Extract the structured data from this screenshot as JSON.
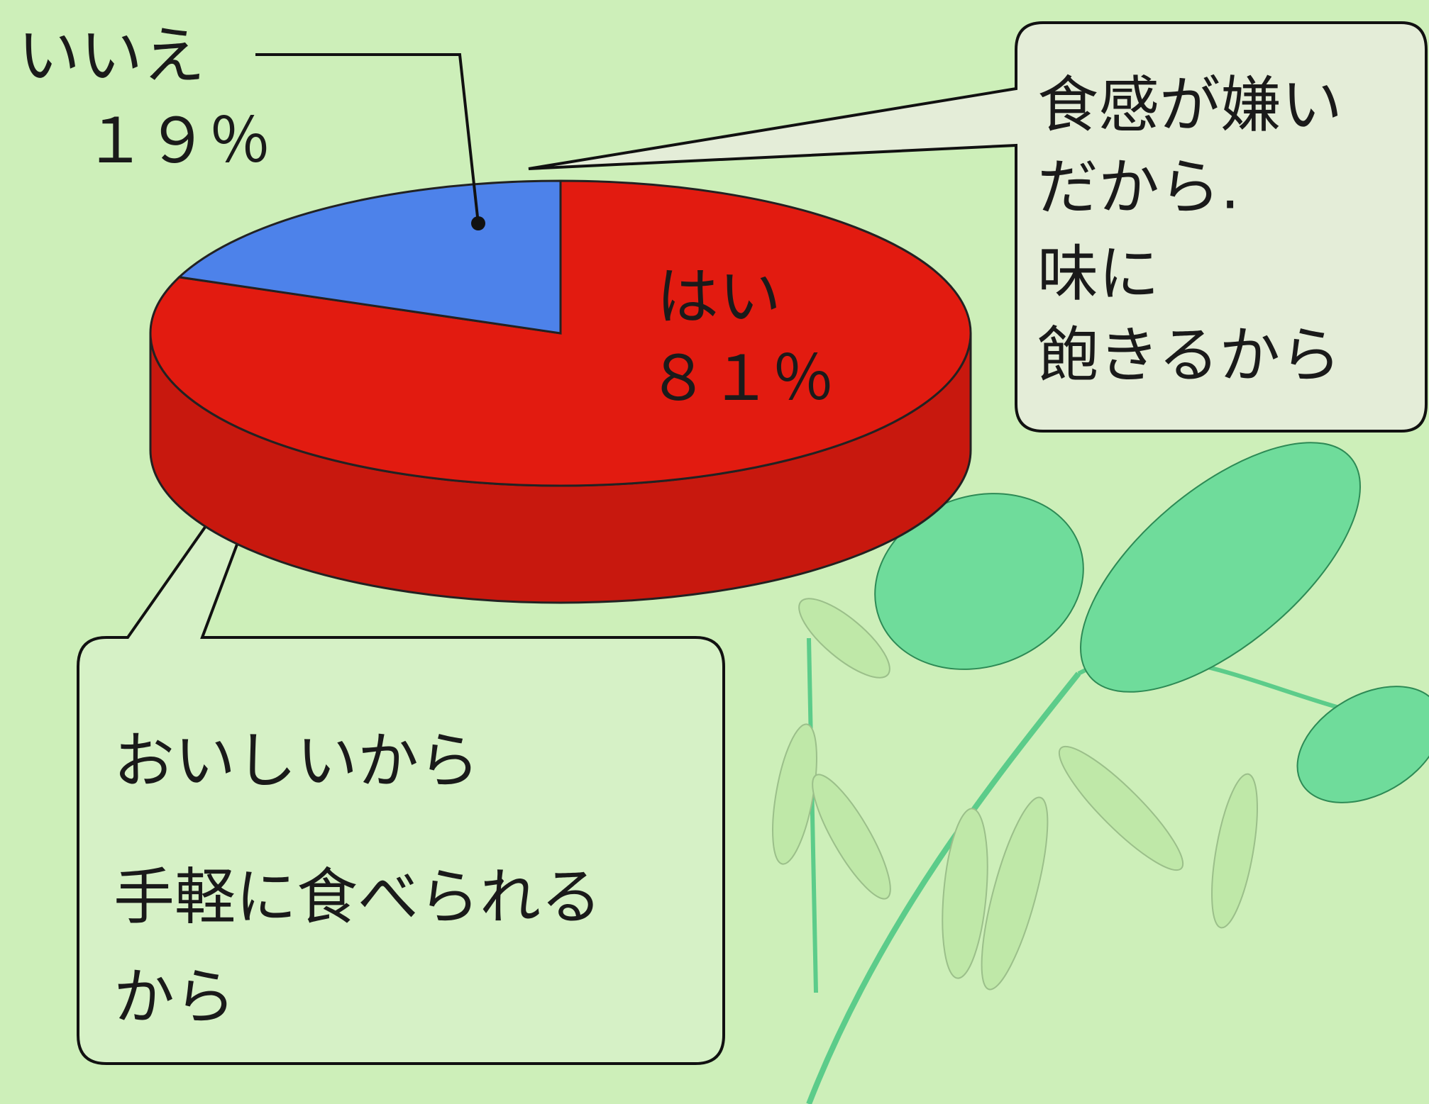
{
  "chart_data": {
    "type": "pie",
    "categories": [
      "はい",
      "いいえ"
    ],
    "values": [
      81,
      19
    ],
    "value_labels": [
      "８１％",
      "１９％"
    ],
    "colors": [
      "#e21b10",
      "#4d82ea"
    ],
    "annotations": [
      {
        "lines": [
          "食感が嫌い",
          "だから.",
          "味に",
          "飽きるから"
        ]
      },
      {
        "lines": [
          "おいしいから",
          "手軽に食べられる",
          "から"
        ]
      }
    ]
  }
}
